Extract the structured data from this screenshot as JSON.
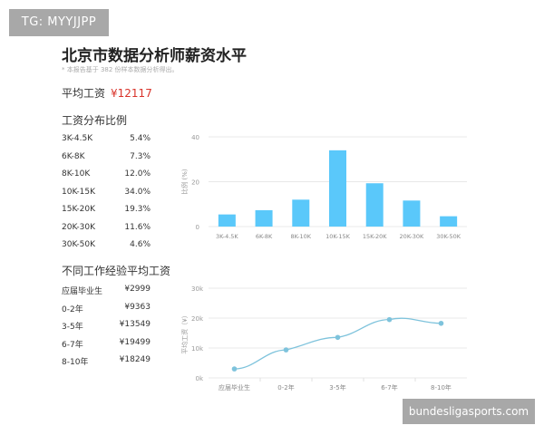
{
  "watermark_top": "TG: MYYJJPP",
  "watermark_bottom": "bundesligasports.com",
  "title": "北京市数据分析师薪资水平",
  "note": "* 本报告基于 382 份样本数据分析得出。",
  "avg_label": "平均工资",
  "avg_value": "¥12117",
  "dist_title": "工资分布比例",
  "dist_rows": [
    {
      "label": "3K-4.5K",
      "value": "5.4%"
    },
    {
      "label": "6K-8K",
      "value": "7.3%"
    },
    {
      "label": "8K-10K",
      "value": "12.0%"
    },
    {
      "label": "10K-15K",
      "value": "34.0%"
    },
    {
      "label": "15K-20K",
      "value": "19.3%"
    },
    {
      "label": "20K-30K",
      "value": "11.6%"
    },
    {
      "label": "30K-50K",
      "value": "4.6%"
    }
  ],
  "exp_title": "不同工作经验平均工资",
  "exp_rows": [
    {
      "label": "应届毕业生",
      "value": "¥2999"
    },
    {
      "label": "0-2年",
      "value": "¥9363"
    },
    {
      "label": "3-5年",
      "value": "¥13549"
    },
    {
      "label": "6-7年",
      "value": "¥19499"
    },
    {
      "label": "8-10年",
      "value": "¥18249"
    }
  ],
  "chart_data": [
    {
      "type": "bar",
      "categories": [
        "3K-4.5K",
        "6K-8K",
        "8K-10K",
        "10K-15K",
        "15K-20K",
        "20K-30K",
        "30K-50K"
      ],
      "values": [
        5.4,
        7.3,
        12.0,
        34.0,
        19.3,
        11.6,
        4.6
      ],
      "ylabel": "比例 (%)",
      "ylim": [
        0,
        40
      ],
      "yticks": [
        "0",
        "20",
        "40"
      ],
      "grid": true,
      "color": "#5ac8fa"
    },
    {
      "type": "line",
      "categories": [
        "应届毕业生",
        "0-2年",
        "3-5年",
        "6-7年",
        "8-10年"
      ],
      "values": [
        2999,
        9363,
        13549,
        19499,
        18249
      ],
      "ylabel": "平均工资（¥）",
      "ylim": [
        0,
        30000
      ],
      "yticks": [
        "0k",
        "10k",
        "20k",
        "30k"
      ],
      "grid": true,
      "color": "#7ec3dc"
    }
  ]
}
